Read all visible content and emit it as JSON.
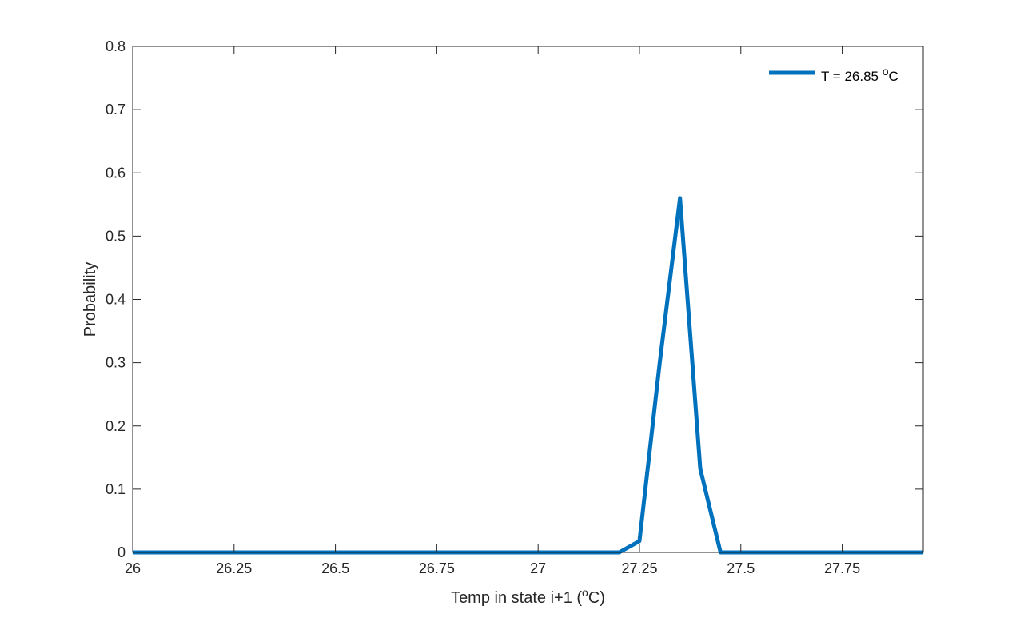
{
  "chart_data": {
    "type": "line",
    "xlabel_parts": {
      "pre": "Temp in state i+1 (",
      "sup": "o",
      "post": "C)"
    },
    "ylabel": "Probability",
    "xlim": [
      26,
      27.95
    ],
    "ylim": [
      0,
      0.8
    ],
    "x_ticks": [
      26,
      26.25,
      26.5,
      26.75,
      27,
      27.25,
      27.5,
      27.75
    ],
    "x_tick_labels": [
      "26",
      "26.25",
      "26.5",
      "26.75",
      "27",
      "27.25",
      "27.5",
      "27.75"
    ],
    "y_ticks": [
      0,
      0.1,
      0.2,
      0.3,
      0.4,
      0.5,
      0.6,
      0.7,
      0.8
    ],
    "y_tick_labels": [
      "0",
      "0.1",
      "0.2",
      "0.3",
      "0.4",
      "0.5",
      "0.6",
      "0.7",
      "0.8"
    ],
    "grid": false,
    "box": true,
    "legend": {
      "position": "top-right",
      "label_parts": {
        "pre": "T = 26.85 ",
        "sup": "o",
        "post": "C"
      }
    },
    "series": [
      {
        "color": "#0072BD",
        "x": [
          26,
          26.05,
          26.1,
          26.15,
          26.2,
          26.25,
          26.3,
          26.35,
          26.4,
          26.45,
          26.5,
          26.55,
          26.6,
          26.65,
          26.7,
          26.75,
          26.8,
          26.85,
          26.9,
          26.95,
          27,
          27.05,
          27.1,
          27.15,
          27.2,
          27.25,
          27.3,
          27.35,
          27.4,
          27.45,
          27.5,
          27.55,
          27.6,
          27.65,
          27.7,
          27.75,
          27.8,
          27.85,
          27.9,
          27.95
        ],
        "y": [
          0,
          0,
          0,
          0,
          0,
          0,
          0,
          0,
          0,
          0,
          0,
          0,
          0,
          0,
          0,
          0,
          0,
          0,
          0,
          0,
          0,
          0,
          0,
          0,
          0,
          0.018,
          0.3,
          0.56,
          0.132,
          0,
          0,
          0,
          0,
          0,
          0,
          0,
          0,
          0,
          0,
          0
        ]
      }
    ]
  }
}
